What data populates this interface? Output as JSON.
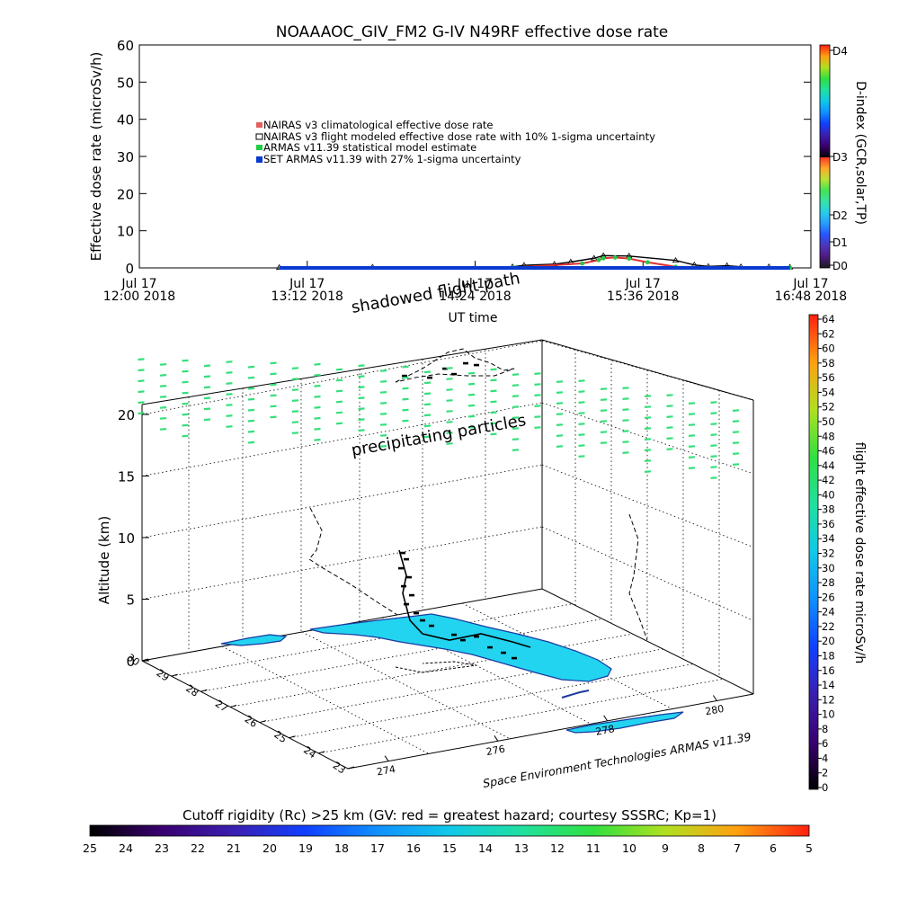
{
  "chart_data": [
    {
      "type": "line",
      "title": "NOAAAOC_GIV_FM2 G-IV    N49RF  effective dose rate",
      "ylabel": "Effective dose rate (microSv/h)",
      "xlabel": "UT time",
      "ylim": [
        0,
        60
      ],
      "yticks": [
        "0",
        "10",
        "20",
        "30",
        "40",
        "50",
        "60"
      ],
      "xticks": [
        {
          "line1": "Jul 17",
          "line2": "12:00 2018",
          "t": 0
        },
        {
          "line1": "Jul 17",
          "line2": "13:12 2018",
          "t": 72
        },
        {
          "line1": "Jul 17",
          "line2": "14:24 2018",
          "t": 144
        },
        {
          "line1": "Jul 17",
          "line2": "15:36 2018",
          "t": 216
        },
        {
          "line1": "Jul 17",
          "line2": "16:48 2018",
          "t": 288
        }
      ],
      "legend": [
        {
          "label": "NAIRAS v3 climatological effective dose rate",
          "color": "#e06060"
        },
        {
          "label": "NAIRAS v3 flight modeled effective dose rate with 10% 1-sigma uncertainty",
          "color": "#000000"
        },
        {
          "label": "ARMAS v11.39 statistical model estimate",
          "color": "#22cc44"
        },
        {
          "label": "SET ARMAS v11.39 with 27% 1-sigma uncertainty",
          "color": "#0a3ad0"
        }
      ],
      "legend_placement": "upper-left",
      "series": [
        {
          "name": "NAIRAS v3 flight modeled effective dose rate with 10% 1-sigma uncertainty",
          "t": [
            60,
            100,
            160,
            165,
            178,
            185,
            195,
            199,
            210,
            230,
            238,
            244,
            252,
            258,
            270,
            279
          ],
          "y": [
            0.1,
            0.2,
            0.3,
            0.7,
            1.0,
            1.6,
            2.6,
            3.3,
            3.2,
            2.0,
            0.8,
            0.4,
            0.6,
            0.3,
            0.3,
            0.2
          ]
        },
        {
          "name": "ARMAS v11.39 statistical model estimate",
          "t": [
            160,
            190,
            197,
            199,
            204,
            210,
            218,
            230,
            279
          ],
          "y": [
            0.1,
            1.2,
            2.1,
            2.6,
            2.8,
            2.5,
            1.5,
            0.3,
            0.1
          ]
        },
        {
          "name": "SET ARMAS v11.39 with 27% 1-sigma uncertainty",
          "t": [
            60,
            100,
            150,
            200,
            250,
            279
          ],
          "y": [
            0.0,
            0.0,
            0.0,
            0.0,
            0.0,
            0.0
          ]
        }
      ]
    },
    {
      "type": "surface-3d",
      "zlabel": "Altitude (km)",
      "zticks": [
        "0",
        "5",
        "10",
        "15",
        "20"
      ],
      "lat_ticks": [
        "30",
        "29",
        "28",
        "27",
        "26",
        "25",
        "24",
        "23"
      ],
      "lon_ticks": [
        "274",
        "276",
        "278",
        "280"
      ],
      "annotations": [
        "shadowed flight path",
        "precipitating particles"
      ],
      "credit": "Space Environment Technologies ARMAS v11.39"
    }
  ],
  "dindex_bar": {
    "label": "D-index (GCR,solar,TP)",
    "ticks": [
      "D0",
      "D1",
      "D2",
      "D3",
      "D4"
    ]
  },
  "dose_bar": {
    "label": "flight effective dose rate microSv/h",
    "ticks": [
      "0",
      "2",
      "4",
      "6",
      "8",
      "10",
      "12",
      "14",
      "16",
      "18",
      "20",
      "22",
      "24",
      "26",
      "28",
      "30",
      "32",
      "34",
      "36",
      "38",
      "40",
      "42",
      "44",
      "46",
      "48",
      "50",
      "52",
      "54",
      "56",
      "58",
      "60",
      "62",
      "64"
    ]
  },
  "rigidity_bar": {
    "title": "Cutoff rigidity (Rc) >25 km (GV: red = greatest hazard; courtesy SSSRC; Kp=1)",
    "ticks": [
      "25",
      "24",
      "23",
      "22",
      "21",
      "20",
      "19",
      "18",
      "17",
      "16",
      "15",
      "14",
      "13",
      "12",
      "11",
      "10",
      "9",
      "8",
      "7",
      "6",
      "5"
    ]
  },
  "colors": {
    "land": "#22d4f0",
    "particles": "#33e07a",
    "rainbow": [
      "#000000",
      "#3a0070",
      "#3a1fb0",
      "#1040ff",
      "#1090ff",
      "#10c8e8",
      "#20e0a0",
      "#30e040",
      "#90e020",
      "#e8e020",
      "#ff9010",
      "#ff3010"
    ]
  }
}
